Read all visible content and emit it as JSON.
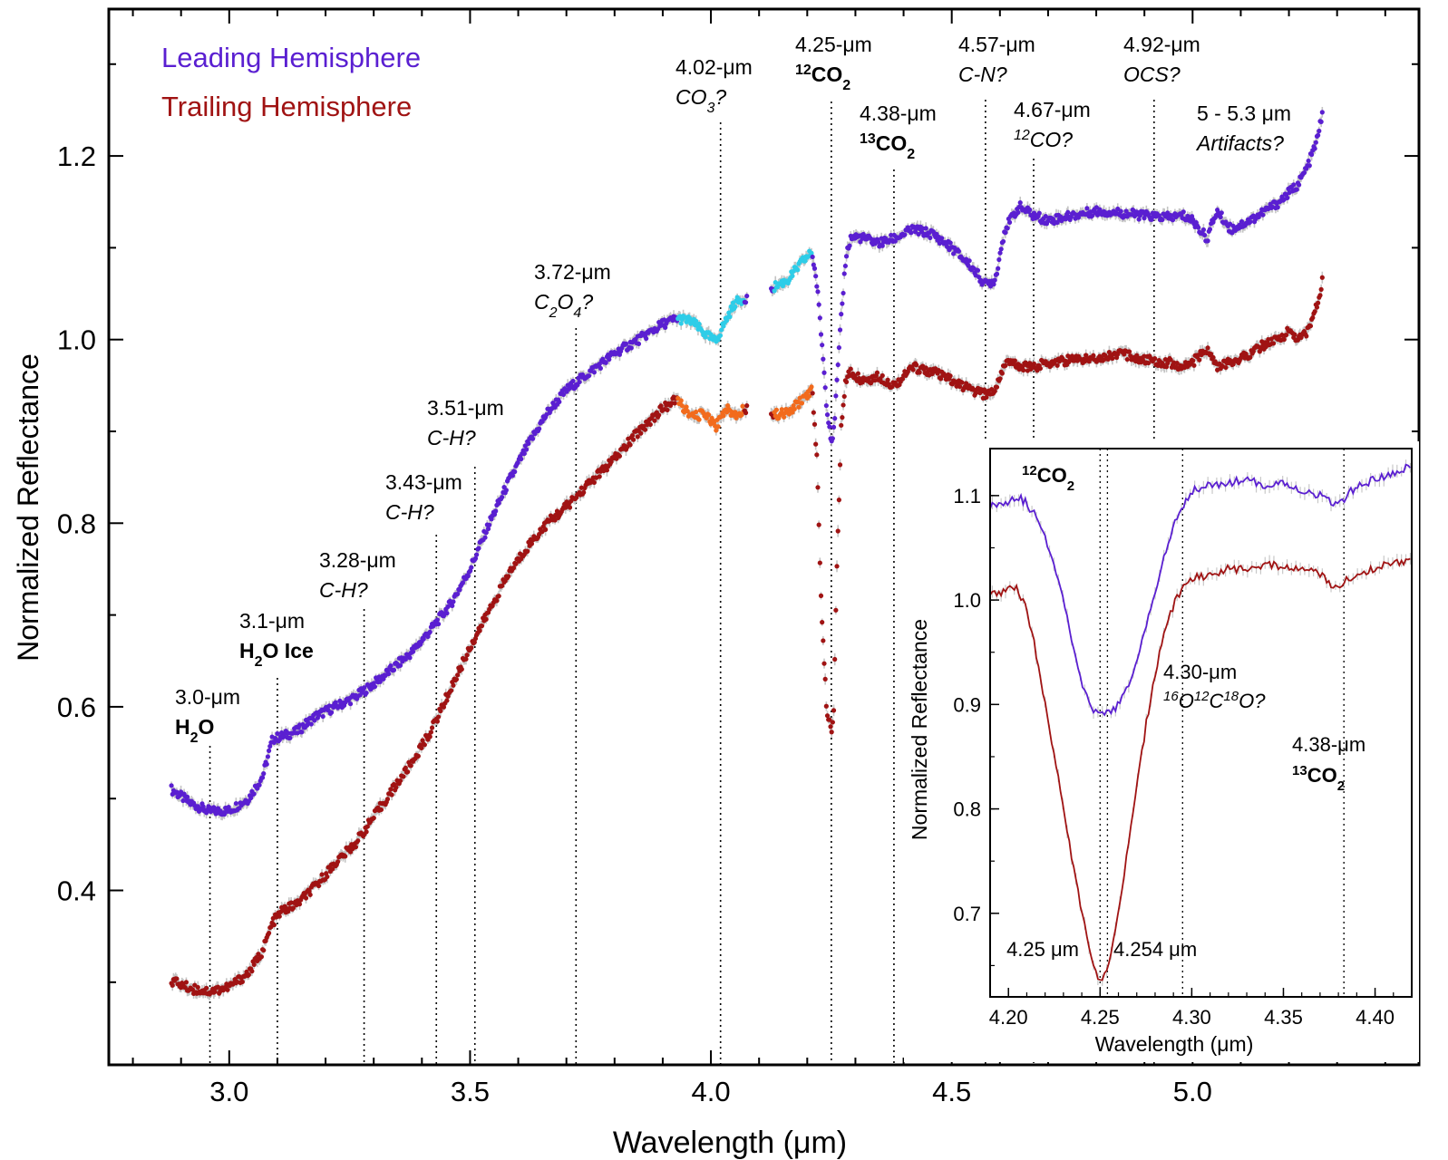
{
  "chart_data": [
    {
      "type": "scatter",
      "xlabel": "Wavelength (μm)",
      "ylabel": "Normalized Reflectance",
      "xlim": [
        2.75,
        5.47
      ],
      "ylim": [
        0.21,
        1.36
      ],
      "xticks": [
        3.0,
        3.5,
        4.0,
        4.5,
        5.0
      ],
      "xtick_labels": [
        "3.0",
        "3.5",
        "4.0",
        "4.5",
        "5.0"
      ],
      "yticks": [
        0.4,
        0.6,
        0.8,
        1.0,
        1.2
      ],
      "ytick_labels": [
        "0.4",
        "0.6",
        "0.8",
        "1.0",
        "1.2"
      ],
      "grid": false,
      "legend_position": "top-left",
      "series": [
        {
          "name": "Leading Hemisphere",
          "color": "#5a1fd1",
          "highlight_color": "#2ecde8",
          "x": [
            2.88,
            2.92,
            2.96,
            3.0,
            3.04,
            3.07,
            3.09,
            3.11,
            3.14,
            3.18,
            3.22,
            3.26,
            3.3,
            3.34,
            3.38,
            3.42,
            3.46,
            3.5,
            3.54,
            3.58,
            3.62,
            3.66,
            3.7,
            3.75,
            3.8,
            3.85,
            3.9,
            3.93,
            3.96,
            3.99,
            4.01,
            4.03,
            4.05,
            4.07,
            4.13,
            4.16,
            4.19,
            4.21,
            4.22,
            4.23,
            4.24,
            4.25,
            4.255,
            4.26,
            4.27,
            4.28,
            4.29,
            4.3,
            4.32,
            4.35,
            4.38,
            4.42,
            4.46,
            4.5,
            4.54,
            4.57,
            4.59,
            4.61,
            4.64,
            4.67,
            4.7,
            4.75,
            4.8,
            4.85,
            4.9,
            4.95,
            4.98,
            5.0,
            5.03,
            5.05,
            5.08,
            5.12,
            5.15,
            5.18,
            5.2,
            5.22,
            5.24,
            5.26,
            5.27
          ],
          "y": [
            0.51,
            0.495,
            0.486,
            0.487,
            0.5,
            0.525,
            0.565,
            0.568,
            0.573,
            0.59,
            0.6,
            0.61,
            0.625,
            0.642,
            0.66,
            0.685,
            0.712,
            0.75,
            0.8,
            0.845,
            0.885,
            0.92,
            0.945,
            0.965,
            0.985,
            1.0,
            1.017,
            1.023,
            1.02,
            1.005,
            0.998,
            1.02,
            1.04,
            1.045,
            1.057,
            1.065,
            1.085,
            1.095,
            1.06,
            1.0,
            0.93,
            0.89,
            0.9,
            0.94,
            1.02,
            1.09,
            1.11,
            1.112,
            1.11,
            1.105,
            1.11,
            1.12,
            1.115,
            1.1,
            1.08,
            1.06,
            1.065,
            1.12,
            1.145,
            1.135,
            1.13,
            1.135,
            1.14,
            1.138,
            1.135,
            1.133,
            1.135,
            1.13,
            1.11,
            1.14,
            1.12,
            1.13,
            1.14,
            1.15,
            1.16,
            1.17,
            1.19,
            1.22,
            1.25
          ]
        },
        {
          "name": "Trailing Hemisphere",
          "color": "#a01313",
          "highlight_color": "#f26b1d",
          "x": [
            2.88,
            2.92,
            2.96,
            3.0,
            3.04,
            3.07,
            3.09,
            3.11,
            3.14,
            3.18,
            3.22,
            3.26,
            3.3,
            3.34,
            3.38,
            3.42,
            3.46,
            3.5,
            3.54,
            3.58,
            3.62,
            3.66,
            3.7,
            3.75,
            3.8,
            3.85,
            3.9,
            3.93,
            3.96,
            3.99,
            4.01,
            4.03,
            4.05,
            4.07,
            4.13,
            4.16,
            4.19,
            4.21,
            4.22,
            4.23,
            4.24,
            4.25,
            4.255,
            4.26,
            4.27,
            4.28,
            4.29,
            4.3,
            4.32,
            4.35,
            4.38,
            4.42,
            4.46,
            4.5,
            4.54,
            4.57,
            4.59,
            4.61,
            4.64,
            4.67,
            4.7,
            4.75,
            4.8,
            4.85,
            4.9,
            4.95,
            4.98,
            5.0,
            5.03,
            5.05,
            5.08,
            5.12,
            5.15,
            5.18,
            5.2,
            5.22,
            5.24,
            5.26,
            5.27
          ],
          "y": [
            0.302,
            0.293,
            0.29,
            0.295,
            0.31,
            0.335,
            0.365,
            0.378,
            0.385,
            0.405,
            0.43,
            0.45,
            0.48,
            0.51,
            0.54,
            0.575,
            0.62,
            0.665,
            0.705,
            0.745,
            0.775,
            0.8,
            0.818,
            0.845,
            0.87,
            0.9,
            0.925,
            0.935,
            0.915,
            0.92,
            0.905,
            0.925,
            0.918,
            0.925,
            0.918,
            0.92,
            0.935,
            0.945,
            0.87,
            0.7,
            0.6,
            0.57,
            0.6,
            0.72,
            0.9,
            0.955,
            0.965,
            0.96,
            0.955,
            0.96,
            0.95,
            0.97,
            0.965,
            0.955,
            0.945,
            0.94,
            0.945,
            0.975,
            0.972,
            0.97,
            0.975,
            0.978,
            0.98,
            0.985,
            0.978,
            0.975,
            0.97,
            0.975,
            0.99,
            0.97,
            0.975,
            0.985,
            0.995,
            1.0,
            1.01,
            1.0,
            1.01,
            1.04,
            1.065
          ]
        }
      ],
      "highlight_ranges": [
        [
          3.93,
          4.07
        ],
        [
          4.13,
          4.21
        ]
      ],
      "annotations": [
        {
          "x": 2.96,
          "label": "3.0-μm",
          "name_parts": [
            [
              "H",
              ""
            ],
            [
              "2",
              "sub"
            ],
            [
              "O",
              ""
            ]
          ],
          "name_style": "bold"
        },
        {
          "x": 3.1,
          "label": "3.1-μm",
          "name_parts": [
            [
              "H",
              ""
            ],
            [
              "2",
              "sub"
            ],
            [
              "O Ice",
              ""
            ]
          ],
          "name_style": "bold"
        },
        {
          "x": 3.28,
          "label": "3.28-μm",
          "name_parts": [
            [
              "C-H?",
              ""
            ]
          ],
          "name_style": "italic"
        },
        {
          "x": 3.43,
          "label": "3.43-μm",
          "name_parts": [
            [
              "C-H?",
              ""
            ]
          ],
          "name_style": "italic"
        },
        {
          "x": 3.51,
          "label": "3.51-μm",
          "name_parts": [
            [
              "C-H?",
              ""
            ]
          ],
          "name_style": "italic"
        },
        {
          "x": 3.72,
          "label": "3.72-μm",
          "name_parts": [
            [
              "C",
              ""
            ],
            [
              "2",
              "sub"
            ],
            [
              "O",
              ""
            ],
            [
              "4",
              "sub"
            ],
            [
              "?",
              ""
            ]
          ],
          "name_style": "italic"
        },
        {
          "x": 4.02,
          "label": "4.02-μm",
          "name_parts": [
            [
              "CO",
              ""
            ],
            [
              "3",
              "sub"
            ],
            [
              "?",
              ""
            ]
          ],
          "name_style": "italic"
        },
        {
          "x": 4.25,
          "label": "4.25-μm",
          "name_parts": [
            [
              "12",
              "sup"
            ],
            [
              "CO",
              ""
            ],
            [
              "2",
              "sub"
            ]
          ],
          "name_style": "bold"
        },
        {
          "x": 4.38,
          "label": "4.38-μm",
          "name_parts": [
            [
              "13",
              "sup"
            ],
            [
              "CO",
              ""
            ],
            [
              "2",
              "sub"
            ]
          ],
          "name_style": "bold"
        },
        {
          "x": 4.57,
          "label": "4.57-μm",
          "name_parts": [
            [
              "C-N?",
              ""
            ]
          ],
          "name_style": "italic"
        },
        {
          "x": 4.67,
          "label": "4.67-μm",
          "name_parts": [
            [
              "12",
              "sup"
            ],
            [
              "CO?",
              ""
            ]
          ],
          "name_style": "italic"
        },
        {
          "x": 4.92,
          "label": "4.92-μm",
          "name_parts": [
            [
              "OCS?",
              ""
            ]
          ],
          "name_style": "italic"
        },
        {
          "x": null,
          "label": "5 - 5.3 μm",
          "name_parts": [
            [
              "Artifacts?",
              ""
            ]
          ],
          "name_style": "italic"
        }
      ]
    },
    {
      "type": "line",
      "xlabel": "Wavelength (μm)",
      "ylabel": "Normalized Reflectance",
      "xlim": [
        4.19,
        4.42
      ],
      "ylim": [
        0.62,
        1.145
      ],
      "xticks": [
        4.2,
        4.25,
        4.3,
        4.35,
        4.4
      ],
      "xtick_labels": [
        "4.20",
        "4.25",
        "4.30",
        "4.35",
        "4.40"
      ],
      "yticks": [
        0.7,
        0.8,
        0.9,
        1.0,
        1.1
      ],
      "ytick_labels": [
        "0.7",
        "0.8",
        "0.9",
        "1.0",
        "1.1"
      ],
      "grid": false,
      "series": [
        {
          "name": "Leading Hemisphere",
          "color": "#5a1fd1",
          "x": [
            4.19,
            4.2,
            4.205,
            4.21,
            4.215,
            4.22,
            4.225,
            4.23,
            4.235,
            4.24,
            4.245,
            4.25,
            4.255,
            4.26,
            4.265,
            4.27,
            4.275,
            4.28,
            4.285,
            4.29,
            4.295,
            4.3,
            4.31,
            4.32,
            4.33,
            4.34,
            4.35,
            4.36,
            4.37,
            4.38,
            4.385,
            4.39,
            4.4,
            4.41,
            4.42
          ],
          "y": [
            1.09,
            1.095,
            1.1,
            1.092,
            1.08,
            1.06,
            1.035,
            1.0,
            0.96,
            0.92,
            0.895,
            0.89,
            0.892,
            0.9,
            0.915,
            0.94,
            0.975,
            1.01,
            1.04,
            1.07,
            1.09,
            1.105,
            1.11,
            1.112,
            1.115,
            1.11,
            1.112,
            1.105,
            1.1,
            1.09,
            1.1,
            1.11,
            1.115,
            1.12,
            1.13
          ]
        },
        {
          "name": "Trailing Hemisphere",
          "color": "#a01313",
          "x": [
            4.19,
            4.2,
            4.205,
            4.21,
            4.215,
            4.22,
            4.225,
            4.23,
            4.235,
            4.24,
            4.245,
            4.25,
            4.255,
            4.26,
            4.265,
            4.27,
            4.275,
            4.28,
            4.285,
            4.29,
            4.295,
            4.3,
            4.31,
            4.32,
            4.33,
            4.34,
            4.35,
            4.36,
            4.37,
            4.38,
            4.385,
            4.39,
            4.4,
            4.41,
            4.42
          ],
          "y": [
            1.005,
            1.01,
            1.01,
            0.99,
            0.95,
            0.9,
            0.85,
            0.8,
            0.75,
            0.7,
            0.66,
            0.635,
            0.65,
            0.7,
            0.76,
            0.82,
            0.88,
            0.93,
            0.97,
            0.995,
            1.01,
            1.02,
            1.025,
            1.03,
            1.03,
            1.035,
            1.03,
            1.03,
            1.025,
            1.01,
            1.02,
            1.025,
            1.03,
            1.035,
            1.04
          ]
        }
      ],
      "vlines": [
        4.25,
        4.254,
        4.295,
        4.383
      ],
      "annotations": {
        "co2_12_parts": [
          [
            "12",
            "sup"
          ],
          [
            "CO",
            ""
          ],
          [
            "2",
            "sub"
          ]
        ],
        "left_min": "4.25 μm",
        "right_min": "4.254 μm",
        "iso_label": "4.30-μm",
        "iso_parts": [
          [
            "16",
            "sup"
          ],
          [
            "O",
            ""
          ],
          [
            "12",
            "sup"
          ],
          [
            "C",
            ""
          ],
          [
            "18",
            "sup"
          ],
          [
            "O?",
            ""
          ]
        ],
        "co2_13_label": "4.38-μm",
        "co2_13_parts": [
          [
            "13",
            "sup"
          ],
          [
            "CO",
            ""
          ],
          [
            "2",
            "sub"
          ]
        ]
      }
    }
  ]
}
